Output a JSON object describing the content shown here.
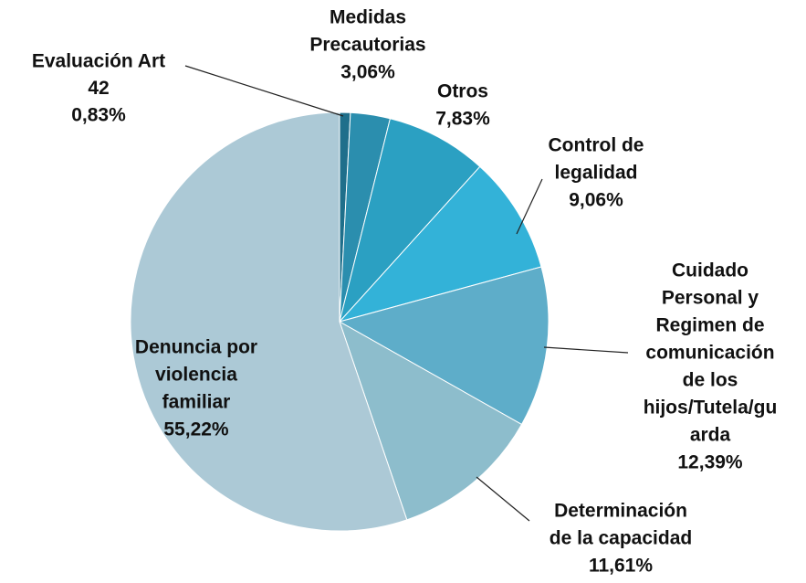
{
  "chart_data": {
    "type": "pie",
    "categories": [
      [
        "Evaluación Art",
        "42"
      ],
      [
        "Medidas",
        "Precautorias"
      ],
      [
        "Otros"
      ],
      [
        "Control de",
        "legalidad"
      ],
      [
        "Cuidado",
        "Personal y",
        "Regimen de",
        "comunicación",
        "de los",
        "hijos/Tutela/gu",
        "arda"
      ],
      [
        "Determinación",
        "de la capacidad"
      ],
      [
        "Denuncia por",
        "violencia",
        "familiar"
      ]
    ],
    "values": [
      0.83,
      3.06,
      7.83,
      9.06,
      12.39,
      11.61,
      55.22
    ],
    "value_labels": [
      "0,83%",
      "3,06%",
      "7,83%",
      "9,06%",
      "12,39%",
      "11,61%",
      "55,22%"
    ],
    "colors": [
      "#1f6f8b",
      "#2b8eae",
      "#2ba0c2",
      "#33b2d8",
      "#5eadc9",
      "#8dbdcc",
      "#acc9d6"
    ]
  }
}
